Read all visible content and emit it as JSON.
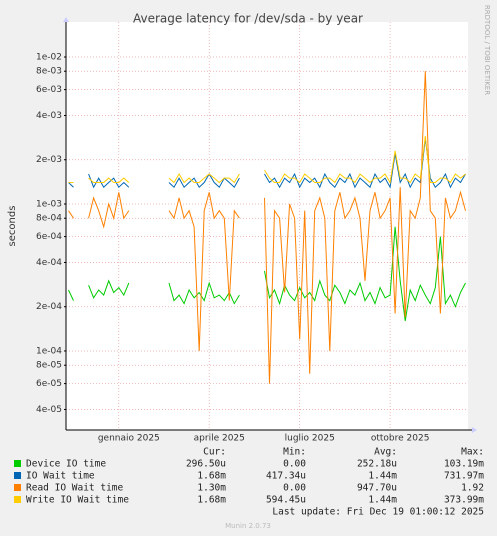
{
  "chart_data": {
    "type": "line",
    "title": "Average latency for /dev/sda - by year",
    "y_label": "seconds",
    "side_text": "RRDTOOL / TOBI OETIKER",
    "log_scale": true,
    "grid": true,
    "ylim": [
      2.9e-05,
      0.0173
    ],
    "yticks": [
      {
        "value": 0.01,
        "label": "1e-02"
      },
      {
        "value": 0.008,
        "label": "8e-03"
      },
      {
        "value": 0.006,
        "label": "6e-03"
      },
      {
        "value": 0.004,
        "label": "4e-03"
      },
      {
        "value": 0.002,
        "label": "2e-03"
      },
      {
        "value": 0.001,
        "label": "1e-03"
      },
      {
        "value": 0.0008,
        "label": "8e-04"
      },
      {
        "value": 0.0006,
        "label": "6e-04"
      },
      {
        "value": 0.0004,
        "label": "4e-04"
      },
      {
        "value": 0.0002,
        "label": "2e-04"
      },
      {
        "value": 0.0001,
        "label": "1e-04"
      },
      {
        "value": 8e-05,
        "label": "8e-05"
      },
      {
        "value": 6e-05,
        "label": "6e-05"
      },
      {
        "value": 4e-05,
        "label": "4e-05"
      }
    ],
    "categories": [
      null,
      null,
      null,
      null,
      null,
      null,
      null,
      null,
      null,
      null,
      null,
      null,
      "gennaio 2025",
      null,
      null,
      null,
      null,
      null,
      null,
      null,
      null,
      null,
      null,
      null,
      null,
      null,
      null,
      null,
      null,
      null,
      "aprile 2025",
      null,
      null,
      null,
      null,
      null,
      null,
      null,
      null,
      null,
      null,
      null,
      null,
      null,
      null,
      null,
      null,
      null,
      "luglio 2025",
      null,
      null,
      null,
      null,
      null,
      null,
      null,
      null,
      null,
      null,
      null,
      null,
      null,
      null,
      null,
      null,
      null,
      "ottobre 2025",
      null,
      null,
      null,
      null,
      null,
      null,
      null,
      null,
      null,
      null,
      null,
      null,
      null
    ],
    "legend_headers": [
      "Cur:",
      "Min:",
      "Avg:",
      "Max:"
    ],
    "series": [
      {
        "name": "Device IO time",
        "color": "#00cc00",
        "cur": "296.50u",
        "min": "0.00",
        "avg": "252.18u",
        "max": "103.19m",
        "values": [
          0.00026,
          0.00022,
          null,
          null,
          0.00028,
          0.00023,
          0.00026,
          0.00024,
          0.0003,
          0.00025,
          0.00027,
          0.00024,
          0.00029,
          null,
          null,
          null,
          null,
          null,
          null,
          null,
          0.00029,
          0.00022,
          0.00024,
          0.00021,
          0.00026,
          0.00023,
          0.00025,
          0.00022,
          0.00029,
          0.00023,
          0.00024,
          0.00022,
          0.00025,
          0.00021,
          0.00024,
          null,
          null,
          null,
          null,
          0.00035,
          0.00023,
          0.00026,
          0.00021,
          0.00028,
          0.00024,
          0.00022,
          0.00027,
          0.00023,
          0.00025,
          0.00022,
          0.0003,
          0.00024,
          0.00022,
          0.00028,
          0.00025,
          0.00021,
          0.00026,
          0.00024,
          0.00029,
          0.00022,
          0.00025,
          0.00021,
          0.00027,
          0.00023,
          0.00024,
          0.0007,
          0.0003,
          0.00016,
          0.00026,
          0.00022,
          0.00028,
          0.00024,
          0.00021,
          0.00027,
          0.0006,
          0.00021,
          0.00024,
          0.0002,
          0.00025,
          0.00029
        ]
      },
      {
        "name": "IO Wait time",
        "color": "#0066b3",
        "cur": "1.68m",
        "min": "417.34u",
        "avg": "1.44m",
        "max": "731.97m",
        "values": [
          0.0014,
          0.0013,
          null,
          null,
          0.0016,
          0.0013,
          0.0015,
          0.0013,
          0.0014,
          0.0015,
          0.0013,
          0.0014,
          0.0013,
          null,
          null,
          null,
          null,
          null,
          null,
          null,
          0.0014,
          0.0013,
          0.0015,
          0.0013,
          0.0014,
          0.0015,
          0.0013,
          0.0014,
          0.0016,
          0.0014,
          0.0013,
          0.0015,
          0.0014,
          0.0013,
          0.0015,
          null,
          null,
          null,
          null,
          0.0016,
          0.0014,
          0.0015,
          0.0013,
          0.0015,
          0.0014,
          0.0016,
          0.0013,
          0.0015,
          0.0014,
          0.0015,
          0.0013,
          0.0016,
          0.0014,
          0.0013,
          0.0015,
          0.0014,
          0.0016,
          0.0013,
          0.0015,
          0.0014,
          0.0013,
          0.0016,
          0.0014,
          0.0015,
          0.0013,
          0.0022,
          0.0014,
          0.0016,
          0.0013,
          0.0015,
          0.0014,
          0.0028,
          0.0015,
          0.0013,
          0.0014,
          0.0016,
          0.0013,
          0.0015,
          0.0014,
          0.0016
        ]
      },
      {
        "name": "Read IO Wait time",
        "color": "#ff8000",
        "cur": "1.30m",
        "min": "0.00",
        "avg": "947.70u",
        "max": "1.92",
        "values": [
          0.0009,
          0.0008,
          null,
          null,
          0.0008,
          0.0011,
          0.0009,
          0.0007,
          0.001,
          0.0008,
          0.0012,
          0.0008,
          0.0009,
          null,
          null,
          null,
          null,
          null,
          null,
          null,
          0.0009,
          0.0008,
          0.0011,
          0.0008,
          0.0009,
          0.0007,
          0.0001,
          0.0009,
          0.0012,
          0.0008,
          0.0009,
          0.0008,
          0.00022,
          0.0009,
          0.0008,
          null,
          null,
          null,
          null,
          0.0011,
          6e-05,
          0.0009,
          0.0008,
          0.00025,
          0.001,
          0.0008,
          0.00012,
          0.0009,
          7e-05,
          0.0009,
          0.0011,
          0.0008,
          0.0001,
          0.0009,
          0.0012,
          0.0008,
          0.0009,
          0.0011,
          0.0008,
          0.0003,
          0.0009,
          0.0012,
          0.0008,
          0.0009,
          0.0011,
          0.00018,
          0.0013,
          0.00017,
          0.0009,
          0.0008,
          0.0011,
          0.008,
          0.0009,
          0.0008,
          0.00018,
          0.0011,
          0.0008,
          0.0009,
          0.0012,
          0.0009
        ]
      },
      {
        "name": "Write IO Wait time",
        "color": "#ffcc00",
        "cur": "1.68m",
        "min": "594.45u",
        "avg": "1.44m",
        "max": "373.99m",
        "values": [
          0.0014,
          0.0014,
          null,
          null,
          0.0015,
          0.0014,
          0.0014,
          0.0014,
          0.0015,
          0.0014,
          0.0014,
          0.0015,
          0.0014,
          null,
          null,
          null,
          null,
          null,
          null,
          null,
          0.0015,
          0.0014,
          0.0016,
          0.0014,
          0.0015,
          0.0014,
          0.0014,
          0.0015,
          0.0016,
          0.0015,
          0.0014,
          0.0015,
          0.0015,
          0.0014,
          0.0016,
          null,
          null,
          null,
          null,
          0.0017,
          0.0015,
          0.0014,
          0.0014,
          0.0016,
          0.0015,
          0.0015,
          0.0014,
          0.0016,
          0.0015,
          0.0014,
          0.0014,
          0.0015,
          0.0015,
          0.0014,
          0.0016,
          0.0015,
          0.0015,
          0.0014,
          0.0016,
          0.0015,
          0.0014,
          0.0015,
          0.0015,
          0.0016,
          0.0014,
          0.0023,
          0.0015,
          0.0015,
          0.0014,
          0.0016,
          0.0015,
          0.0029,
          0.0014,
          0.0014,
          0.0015,
          0.0015,
          0.0014,
          0.0016,
          0.0015,
          0.0016
        ]
      }
    ],
    "last_update": "Last update: Fri Dec 19 01:00:12 2025",
    "footer": "Munin 2.0.73"
  }
}
